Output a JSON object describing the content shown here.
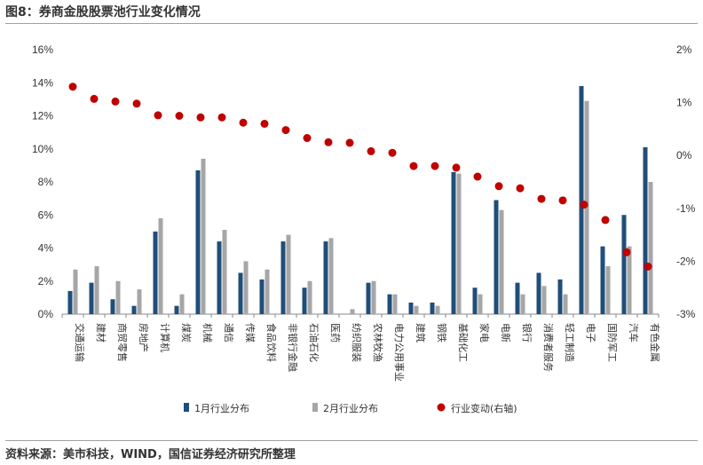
{
  "title": "图8：券商金股股票池行业变化情况",
  "source": "资料来源：美市科技，WIND，国信证券经济研究所整理",
  "colors": {
    "series1": "#1f4e79",
    "series2": "#a6a6a6",
    "series3": "#c00000"
  },
  "chart_data": {
    "type": "bar",
    "categories": [
      "交通运输",
      "建材",
      "商贸零售",
      "房地产",
      "计算机",
      "煤炭",
      "机械",
      "通信",
      "传媒",
      "食品饮料",
      "非银行金融",
      "石油石化",
      "医药",
      "纺织服装",
      "农林牧渔",
      "电力公用事业",
      "建筑",
      "钢铁",
      "基础化工",
      "家电",
      "电新",
      "银行",
      "消费者服务",
      "轻工制造",
      "电子",
      "国防军工",
      "汽车",
      "有色金属"
    ],
    "series": [
      {
        "name": "1月行业分布",
        "axis": "left",
        "type": "bar",
        "values": [
          1.4,
          1.9,
          0.9,
          0.5,
          5.0,
          0.5,
          8.7,
          4.4,
          2.5,
          2.1,
          4.4,
          1.6,
          4.4,
          0.0,
          1.9,
          1.2,
          0.7,
          0.7,
          8.6,
          1.6,
          6.9,
          1.9,
          2.5,
          2.1,
          13.8,
          4.1,
          6.0,
          10.1
        ]
      },
      {
        "name": "2月行业分布",
        "axis": "left",
        "type": "bar",
        "values": [
          2.7,
          2.9,
          2.0,
          1.5,
          5.8,
          1.2,
          9.4,
          5.1,
          3.2,
          2.7,
          4.8,
          2.0,
          4.6,
          0.3,
          2.0,
          1.2,
          0.5,
          0.5,
          8.5,
          1.2,
          6.3,
          1.2,
          1.7,
          1.2,
          12.9,
          2.9,
          4.1,
          8.0
        ]
      },
      {
        "name": "行业变动(右轴)",
        "axis": "right",
        "type": "scatter",
        "values": [
          1.3,
          1.07,
          1.02,
          0.98,
          0.76,
          0.75,
          0.72,
          0.72,
          0.62,
          0.6,
          0.48,
          0.33,
          0.25,
          0.24,
          0.08,
          0.05,
          -0.2,
          -0.2,
          -0.23,
          -0.4,
          -0.58,
          -0.62,
          -0.82,
          -0.85,
          -0.93,
          -1.22,
          -1.83,
          -2.1
        ]
      }
    ],
    "ylim_left": [
      0,
      16
    ],
    "yticks_left": [
      "0%",
      "2%",
      "4%",
      "6%",
      "8%",
      "10%",
      "12%",
      "14%",
      "16%"
    ],
    "ylim_right": [
      -3,
      2
    ],
    "yticks_right": [
      "-3%",
      "-2%",
      "-1%",
      "0%",
      "1%",
      "2%"
    ],
    "grid": false,
    "legend_placement": "bottom"
  }
}
